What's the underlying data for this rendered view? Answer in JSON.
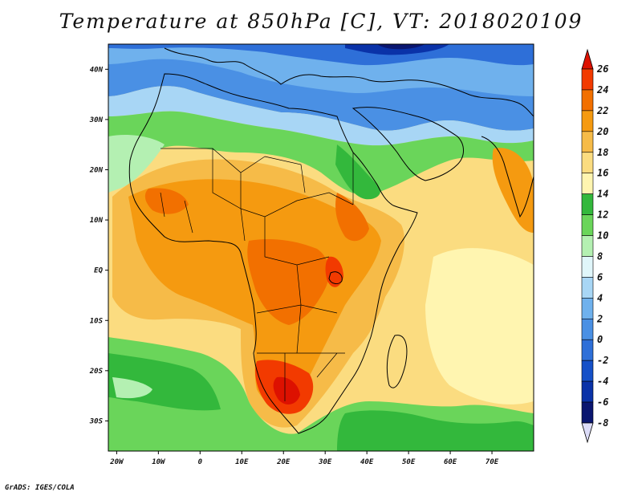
{
  "title": "Temperature at 850hPa [C], VT: 2018020109",
  "credit": "GrADS: IGES/COLA",
  "colors": {
    "c26": "#dd1100",
    "c24": "#f23a00",
    "c22": "#f27000",
    "c20": "#f59a10",
    "c18": "#f6bb48",
    "c16": "#fbdc80",
    "c14": "#fff5b0",
    "c12": "#33b83c",
    "c10": "#6ad55a",
    "c8": "#b4f0b2",
    "c6": "#e0f6fa",
    "c4": "#a8d6f5",
    "c2": "#6fb1ed",
    "c0": "#4a90e4",
    "cm2": "#2e6fd8",
    "cm4": "#1550c8",
    "cm6": "#0a32a8",
    "cm8": "#0a1670",
    "cover": "#dcdcf8",
    "land_line": "#000000"
  },
  "map": {
    "lon_range": [
      -22,
      80
    ],
    "lat_range": [
      -36,
      45
    ],
    "lat_labels": [
      "40N",
      "30N",
      "20N",
      "10N",
      "EQ",
      "10S",
      "20S",
      "30S"
    ],
    "lat_values": [
      40,
      30,
      20,
      10,
      0,
      -10,
      -20,
      -30
    ],
    "lon_labels": [
      "20W",
      "10W",
      "0",
      "10E",
      "20E",
      "30E",
      "40E",
      "50E",
      "60E",
      "70E"
    ],
    "lon_values": [
      -20,
      -10,
      0,
      10,
      20,
      30,
      40,
      50,
      60,
      70
    ]
  },
  "colorbar": {
    "labels": [
      "26",
      "24",
      "22",
      "20",
      "18",
      "16",
      "14",
      "12",
      "10",
      "8",
      "6",
      "4",
      "2",
      "0",
      "-2",
      "-4",
      "-6",
      "-8"
    ],
    "values": [
      26,
      24,
      22,
      20,
      18,
      16,
      14,
      12,
      10,
      8,
      6,
      4,
      2,
      0,
      -2,
      -4,
      -6,
      -8
    ]
  }
}
